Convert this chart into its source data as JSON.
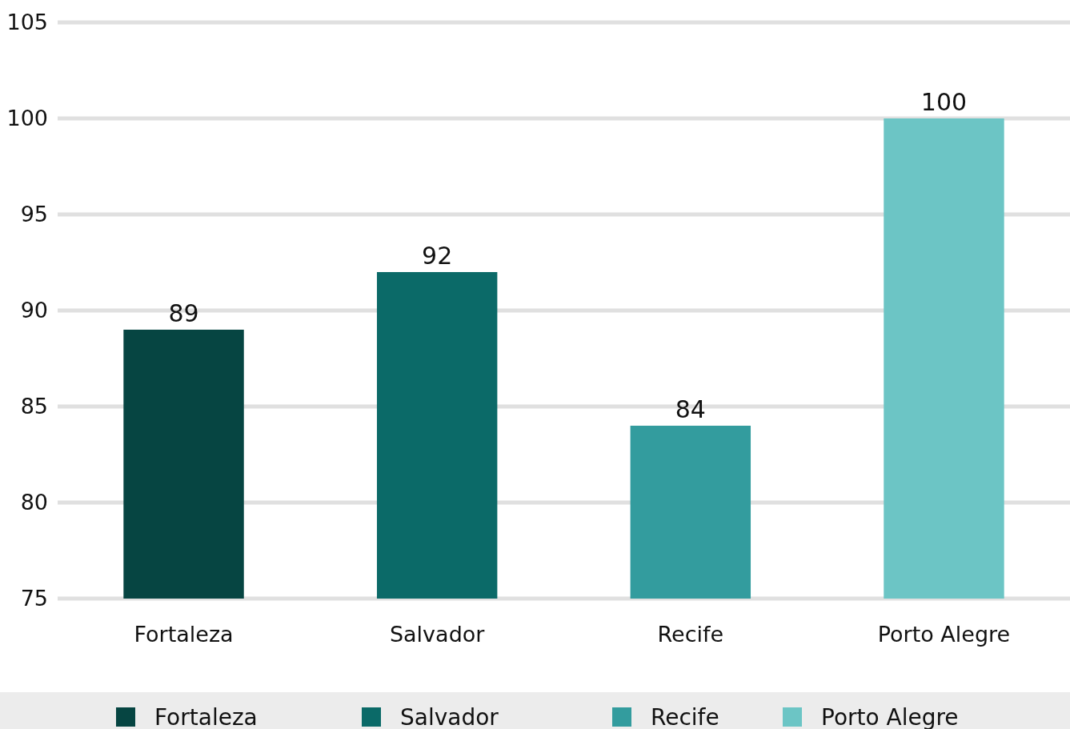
{
  "chart_data": {
    "type": "bar",
    "categories": [
      "Fortaleza",
      "Salvador",
      "Recife",
      "Porto Alegre"
    ],
    "series": [
      {
        "name": "Fortaleza",
        "color": "#064542",
        "values": [
          89,
          null,
          null,
          null
        ]
      },
      {
        "name": "Salvador",
        "color": "#0b6a68",
        "values": [
          null,
          92,
          null,
          null
        ]
      },
      {
        "name": "Recife",
        "color": "#339c9e",
        "values": [
          null,
          null,
          84,
          null
        ]
      },
      {
        "name": "Porto Alegre",
        "color": "#6cc5c5",
        "values": [
          null,
          null,
          null,
          100
        ]
      }
    ],
    "ylim": [
      75,
      105
    ],
    "yticks": [
      75,
      80,
      85,
      90,
      95,
      100,
      105
    ],
    "grid": "y",
    "data_labels": true,
    "legend": "bottom"
  }
}
